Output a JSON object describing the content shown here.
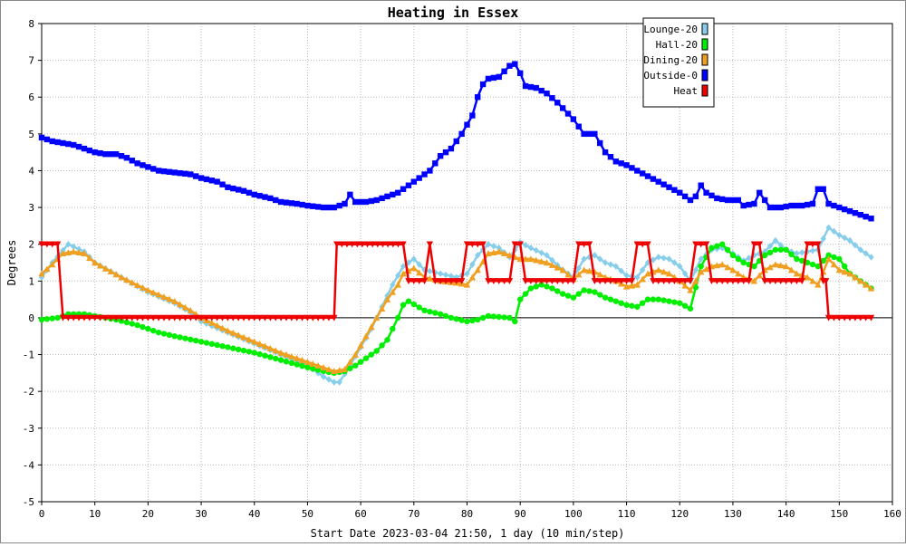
{
  "chart_data": {
    "type": "line",
    "title": "Heating in Essex",
    "xlabel": "Start Date 2023-03-04 21:50, 1 day (10 min/step)",
    "ylabel": "Degrees",
    "xlim": [
      0,
      160
    ],
    "ylim": [
      -5,
      8
    ],
    "xticks": [
      0,
      10,
      20,
      30,
      40,
      50,
      60,
      70,
      80,
      90,
      100,
      110,
      120,
      130,
      140,
      150,
      160
    ],
    "yticks": [
      -5,
      -4,
      -3,
      -2,
      -1,
      0,
      1,
      2,
      3,
      4,
      5,
      6,
      7,
      8
    ],
    "grid": true,
    "legend_position": "top-right",
    "series": [
      {
        "name": "Lounge-20",
        "color": "#87ceeb",
        "marker": "diamond",
        "points": [
          [
            0,
            1.1
          ],
          [
            2,
            1.5
          ],
          [
            5,
            2.0
          ],
          [
            8,
            1.8
          ],
          [
            10,
            1.5
          ],
          [
            15,
            1.1
          ],
          [
            20,
            0.7
          ],
          [
            25,
            0.4
          ],
          [
            28,
            0.15
          ],
          [
            30,
            -0.1
          ],
          [
            35,
            -0.4
          ],
          [
            40,
            -0.7
          ],
          [
            45,
            -1.0
          ],
          [
            50,
            -1.3
          ],
          [
            53,
            -1.6
          ],
          [
            55,
            -1.75
          ],
          [
            56,
            -1.75
          ],
          [
            58,
            -1.3
          ],
          [
            60,
            -0.8
          ],
          [
            62,
            -0.3
          ],
          [
            64,
            0.3
          ],
          [
            66,
            0.9
          ],
          [
            68,
            1.4
          ],
          [
            70,
            1.6
          ],
          [
            72,
            1.3
          ],
          [
            75,
            1.2
          ],
          [
            78,
            1.1
          ],
          [
            80,
            1.2
          ],
          [
            82,
            1.7
          ],
          [
            84,
            2.0
          ],
          [
            86,
            1.9
          ],
          [
            88,
            1.65
          ],
          [
            90,
            2.05
          ],
          [
            92,
            1.9
          ],
          [
            95,
            1.7
          ],
          [
            98,
            1.3
          ],
          [
            100,
            1.1
          ],
          [
            102,
            1.6
          ],
          [
            104,
            1.7
          ],
          [
            106,
            1.5
          ],
          [
            108,
            1.4
          ],
          [
            110,
            1.15
          ],
          [
            112,
            1.1
          ],
          [
            114,
            1.5
          ],
          [
            116,
            1.65
          ],
          [
            118,
            1.6
          ],
          [
            120,
            1.4
          ],
          [
            122,
            1.0
          ],
          [
            124,
            1.6
          ],
          [
            126,
            1.85
          ],
          [
            128,
            1.9
          ],
          [
            130,
            1.75
          ],
          [
            132,
            1.55
          ],
          [
            134,
            1.7
          ],
          [
            136,
            1.8
          ],
          [
            138,
            2.1
          ],
          [
            140,
            1.85
          ],
          [
            142,
            1.75
          ],
          [
            144,
            1.8
          ],
          [
            146,
            1.85
          ],
          [
            148,
            2.45
          ],
          [
            150,
            2.25
          ],
          [
            152,
            2.1
          ],
          [
            154,
            1.85
          ],
          [
            156,
            1.65
          ]
        ]
      },
      {
        "name": "Hall-20",
        "color": "#00ee00",
        "marker": "circle",
        "points": [
          [
            0,
            -0.05
          ],
          [
            3,
            0.0
          ],
          [
            5,
            0.1
          ],
          [
            8,
            0.1
          ],
          [
            10,
            0.05
          ],
          [
            14,
            -0.05
          ],
          [
            18,
            -0.2
          ],
          [
            22,
            -0.4
          ],
          [
            25,
            -0.5
          ],
          [
            30,
            -0.65
          ],
          [
            35,
            -0.8
          ],
          [
            40,
            -0.95
          ],
          [
            45,
            -1.15
          ],
          [
            50,
            -1.35
          ],
          [
            53,
            -1.45
          ],
          [
            55,
            -1.5
          ],
          [
            57,
            -1.45
          ],
          [
            59,
            -1.3
          ],
          [
            61,
            -1.1
          ],
          [
            63,
            -0.9
          ],
          [
            65,
            -0.6
          ],
          [
            67,
            0.0
          ],
          [
            68,
            0.35
          ],
          [
            69,
            0.45
          ],
          [
            72,
            0.2
          ],
          [
            75,
            0.1
          ],
          [
            77,
            0.0
          ],
          [
            80,
            -0.1
          ],
          [
            82,
            -0.05
          ],
          [
            84,
            0.05
          ],
          [
            88,
            0.0
          ],
          [
            89,
            -0.1
          ],
          [
            90,
            0.5
          ],
          [
            92,
            0.8
          ],
          [
            94,
            0.9
          ],
          [
            96,
            0.8
          ],
          [
            98,
            0.65
          ],
          [
            100,
            0.55
          ],
          [
            102,
            0.75
          ],
          [
            104,
            0.7
          ],
          [
            106,
            0.55
          ],
          [
            108,
            0.45
          ],
          [
            110,
            0.35
          ],
          [
            112,
            0.3
          ],
          [
            114,
            0.5
          ],
          [
            116,
            0.5
          ],
          [
            118,
            0.45
          ],
          [
            120,
            0.4
          ],
          [
            122,
            0.25
          ],
          [
            124,
            1.4
          ],
          [
            126,
            1.9
          ],
          [
            128,
            2.0
          ],
          [
            130,
            1.7
          ],
          [
            132,
            1.5
          ],
          [
            134,
            1.4
          ],
          [
            136,
            1.7
          ],
          [
            138,
            1.85
          ],
          [
            140,
            1.85
          ],
          [
            142,
            1.6
          ],
          [
            144,
            1.5
          ],
          [
            146,
            1.4
          ],
          [
            148,
            1.7
          ],
          [
            150,
            1.6
          ],
          [
            152,
            1.2
          ],
          [
            154,
            1.0
          ],
          [
            156,
            0.8
          ]
        ]
      },
      {
        "name": "Dining-20",
        "color": "#f0a020",
        "marker": "triangle",
        "points": [
          [
            0,
            1.2
          ],
          [
            2,
            1.45
          ],
          [
            4,
            1.75
          ],
          [
            6,
            1.8
          ],
          [
            8,
            1.75
          ],
          [
            10,
            1.5
          ],
          [
            15,
            1.1
          ],
          [
            20,
            0.75
          ],
          [
            25,
            0.45
          ],
          [
            28,
            0.2
          ],
          [
            30,
            0.0
          ],
          [
            35,
            -0.35
          ],
          [
            40,
            -0.65
          ],
          [
            45,
            -0.95
          ],
          [
            50,
            -1.2
          ],
          [
            53,
            -1.35
          ],
          [
            55,
            -1.45
          ],
          [
            57,
            -1.4
          ],
          [
            59,
            -1.0
          ],
          [
            61,
            -0.5
          ],
          [
            63,
            0.0
          ],
          [
            65,
            0.5
          ],
          [
            67,
            0.9
          ],
          [
            68,
            1.2
          ],
          [
            70,
            1.35
          ],
          [
            72,
            1.1
          ],
          [
            75,
            1.0
          ],
          [
            78,
            0.95
          ],
          [
            80,
            0.9
          ],
          [
            82,
            1.3
          ],
          [
            84,
            1.75
          ],
          [
            86,
            1.8
          ],
          [
            88,
            1.7
          ],
          [
            90,
            1.6
          ],
          [
            92,
            1.6
          ],
          [
            95,
            1.5
          ],
          [
            98,
            1.3
          ],
          [
            100,
            1.05
          ],
          [
            102,
            1.3
          ],
          [
            104,
            1.25
          ],
          [
            106,
            1.1
          ],
          [
            108,
            1.0
          ],
          [
            110,
            0.85
          ],
          [
            112,
            0.9
          ],
          [
            114,
            1.2
          ],
          [
            116,
            1.3
          ],
          [
            118,
            1.2
          ],
          [
            120,
            1.0
          ],
          [
            122,
            0.75
          ],
          [
            124,
            1.25
          ],
          [
            126,
            1.4
          ],
          [
            128,
            1.45
          ],
          [
            130,
            1.3
          ],
          [
            132,
            1.1
          ],
          [
            134,
            1.0
          ],
          [
            136,
            1.3
          ],
          [
            138,
            1.45
          ],
          [
            140,
            1.4
          ],
          [
            142,
            1.2
          ],
          [
            144,
            1.1
          ],
          [
            146,
            0.9
          ],
          [
            148,
            1.6
          ],
          [
            150,
            1.3
          ],
          [
            152,
            1.2
          ],
          [
            154,
            1.0
          ],
          [
            156,
            0.8
          ]
        ]
      },
      {
        "name": "Outside-0",
        "color": "#0000ff",
        "marker": "square",
        "points": [
          [
            0,
            4.9
          ],
          [
            2,
            4.8
          ],
          [
            4,
            4.75
          ],
          [
            6,
            4.7
          ],
          [
            8,
            4.6
          ],
          [
            10,
            4.5
          ],
          [
            12,
            4.45
          ],
          [
            14,
            4.45
          ],
          [
            16,
            4.35
          ],
          [
            18,
            4.2
          ],
          [
            20,
            4.1
          ],
          [
            22,
            4.0
          ],
          [
            25,
            3.95
          ],
          [
            28,
            3.9
          ],
          [
            30,
            3.8
          ],
          [
            33,
            3.7
          ],
          [
            35,
            3.55
          ],
          [
            38,
            3.45
          ],
          [
            40,
            3.35
          ],
          [
            43,
            3.25
          ],
          [
            45,
            3.15
          ],
          [
            48,
            3.1
          ],
          [
            50,
            3.05
          ],
          [
            53,
            3.0
          ],
          [
            55,
            3.0
          ],
          [
            57,
            3.1
          ],
          [
            58,
            3.35
          ],
          [
            59,
            3.15
          ],
          [
            61,
            3.15
          ],
          [
            63,
            3.2
          ],
          [
            65,
            3.3
          ],
          [
            67,
            3.4
          ],
          [
            69,
            3.6
          ],
          [
            71,
            3.8
          ],
          [
            73,
            4.0
          ],
          [
            75,
            4.4
          ],
          [
            77,
            4.6
          ],
          [
            79,
            5.0
          ],
          [
            81,
            5.5
          ],
          [
            82,
            6.0
          ],
          [
            83,
            6.35
          ],
          [
            84,
            6.5
          ],
          [
            86,
            6.55
          ],
          [
            87,
            6.7
          ],
          [
            88,
            6.85
          ],
          [
            89,
            6.9
          ],
          [
            90,
            6.65
          ],
          [
            91,
            6.3
          ],
          [
            93,
            6.25
          ],
          [
            95,
            6.1
          ],
          [
            97,
            5.85
          ],
          [
            98,
            5.7
          ],
          [
            100,
            5.4
          ],
          [
            102,
            5.0
          ],
          [
            104,
            5.0
          ],
          [
            106,
            4.5
          ],
          [
            108,
            4.25
          ],
          [
            110,
            4.15
          ],
          [
            112,
            4.0
          ],
          [
            114,
            3.85
          ],
          [
            116,
            3.7
          ],
          [
            118,
            3.55
          ],
          [
            120,
            3.4
          ],
          [
            122,
            3.2
          ],
          [
            123,
            3.3
          ],
          [
            124,
            3.6
          ],
          [
            125,
            3.4
          ],
          [
            127,
            3.25
          ],
          [
            129,
            3.2
          ],
          [
            131,
            3.2
          ],
          [
            132,
            3.05
          ],
          [
            134,
            3.1
          ],
          [
            135,
            3.4
          ],
          [
            137,
            3.0
          ],
          [
            139,
            3.0
          ],
          [
            141,
            3.05
          ],
          [
            143,
            3.05
          ],
          [
            145,
            3.1
          ],
          [
            146,
            3.5
          ],
          [
            147,
            3.5
          ],
          [
            148,
            3.1
          ],
          [
            150,
            3.0
          ],
          [
            152,
            2.9
          ],
          [
            154,
            2.8
          ],
          [
            156,
            2.7
          ]
        ]
      },
      {
        "name": "Heat",
        "color": "#ee0000",
        "marker": "triangle-down",
        "points": [
          [
            0,
            2
          ],
          [
            3,
            2
          ],
          [
            4,
            0
          ],
          [
            55,
            0
          ],
          [
            55.5,
            2
          ],
          [
            68,
            2
          ],
          [
            69,
            1
          ],
          [
            72,
            1
          ],
          [
            73,
            2
          ],
          [
            74,
            1
          ],
          [
            79,
            1
          ],
          [
            80,
            2
          ],
          [
            83,
            2
          ],
          [
            84,
            1
          ],
          [
            88,
            1
          ],
          [
            89,
            2
          ],
          [
            90,
            2
          ],
          [
            91,
            1
          ],
          [
            100,
            1
          ],
          [
            101,
            2
          ],
          [
            103,
            2
          ],
          [
            104,
            1
          ],
          [
            111,
            1
          ],
          [
            112,
            2
          ],
          [
            114,
            2
          ],
          [
            115,
            1
          ],
          [
            122,
            1
          ],
          [
            123,
            2
          ],
          [
            125,
            2
          ],
          [
            126,
            1
          ],
          [
            133,
            1
          ],
          [
            134,
            2
          ],
          [
            135,
            2
          ],
          [
            136,
            1
          ],
          [
            143,
            1
          ],
          [
            144,
            2
          ],
          [
            146,
            2
          ],
          [
            147,
            1
          ],
          [
            147.5,
            1
          ],
          [
            148,
            0
          ],
          [
            156,
            0
          ]
        ]
      }
    ]
  }
}
